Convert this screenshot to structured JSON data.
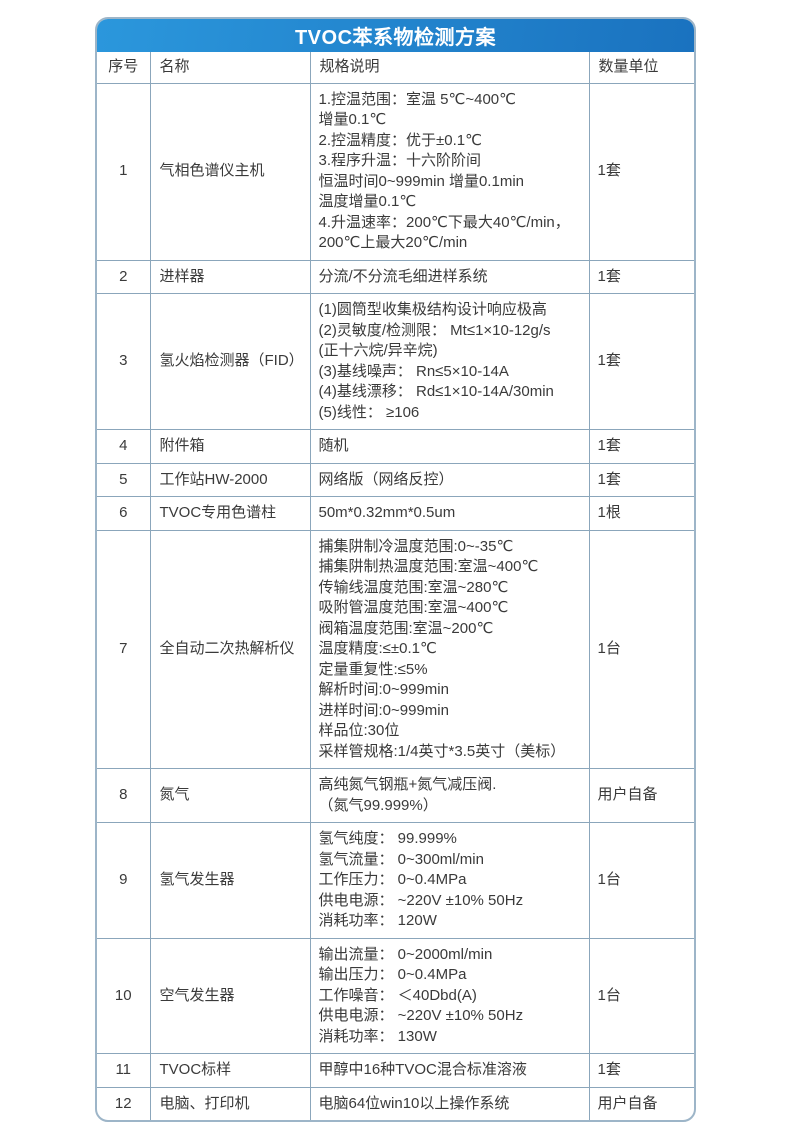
{
  "title": "TVOC苯系物检测方案",
  "colors": {
    "band_gradient_start": "#2b97dc",
    "band_gradient_end": "#1a72bf",
    "grid_line": "#8ba6bb",
    "card_border": "#9db5c8",
    "text": "#3a3a3a",
    "title_text": "#ffffff"
  },
  "table": {
    "headers": [
      "序号",
      "名称",
      "规格说明",
      "数量单位"
    ],
    "rows": [
      {
        "no": "1",
        "name": "气相色谱仪主机",
        "spec": [
          "1.控温范围：室温 5℃~400℃",
          "增量0.1℃",
          "2.控温精度：优于±0.1℃",
          "3.程序升温：十六阶阶间",
          "恒温时间0~999min 增量0.1min",
          "温度增量0.1℃",
          "4.升温速率：200℃下最大40℃/min，",
          "200℃上最大20℃/min"
        ],
        "qty": "1套"
      },
      {
        "no": "2",
        "name": "进样器",
        "spec": [
          "分流/不分流毛细进样系统"
        ],
        "qty": "1套"
      },
      {
        "no": "3",
        "name": "氢火焰检测器（FID）",
        "spec": [
          "(1)圆筒型收集极结构设计响应极高",
          "(2)灵敏度/检测限： Mt≤1×10-12g/s",
          "(正十六烷/异辛烷)",
          "(3)基线噪声： Rn≤5×10-14A",
          "(4)基线漂移： Rd≤1×10-14A/30min",
          "(5)线性： ≥106"
        ],
        "qty": "1套"
      },
      {
        "no": "4",
        "name": "附件箱",
        "spec": [
          "随机"
        ],
        "qty": "1套"
      },
      {
        "no": "5",
        "name": "工作站HW-2000",
        "spec": [
          "网络版（网络反控）"
        ],
        "qty": "1套"
      },
      {
        "no": "6",
        "name": "TVOC专用色谱柱",
        "spec": [
          "50m*0.32mm*0.5um"
        ],
        "qty": "1根"
      },
      {
        "no": "7",
        "name": "全自动二次热解析仪",
        "spec": [
          "捕集阱制冷温度范围:0~-35℃",
          "捕集阱制热温度范围:室温~400℃",
          "传输线温度范围:室温~280℃",
          "吸附管温度范围:室温~400℃",
          "阀箱温度范围:室温~200℃",
          "温度精度:≤±0.1℃",
          "定量重复性:≤5%",
          "解析时间:0~999min",
          "进样时间:0~999min",
          "样品位:30位",
          "采样管规格:1/4英寸*3.5英寸（美标）"
        ],
        "qty": "1台"
      },
      {
        "no": "8",
        "name": "氮气",
        "spec": [
          "高纯氮气钢瓶+氮气减压阀.",
          "（氮气99.999%）"
        ],
        "qty": "用户自备"
      },
      {
        "no": "9",
        "name": "氢气发生器",
        "spec": [
          "氢气纯度： 99.999%",
          "氢气流量： 0~300ml/min",
          "工作压力： 0~0.4MPa",
          "供电电源： ~220V ±10% 50Hz",
          "消耗功率： 120W"
        ],
        "qty": "1台"
      },
      {
        "no": "10",
        "name": "空气发生器",
        "spec": [
          "输出流量： 0~2000ml/min",
          "输出压力： 0~0.4MPa",
          "工作噪音： ＜40Dbd(A)",
          "供电电源： ~220V ±10% 50Hz",
          "消耗功率： 130W"
        ],
        "qty": "1台"
      },
      {
        "no": "11",
        "name": "TVOC标样",
        "spec": [
          "甲醇中16种TVOC混合标准溶液"
        ],
        "qty": "1套"
      },
      {
        "no": "12",
        "name": "电脑、打印机",
        "spec": [
          "电脑64位win10以上操作系统"
        ],
        "qty": "用户自备"
      }
    ]
  }
}
